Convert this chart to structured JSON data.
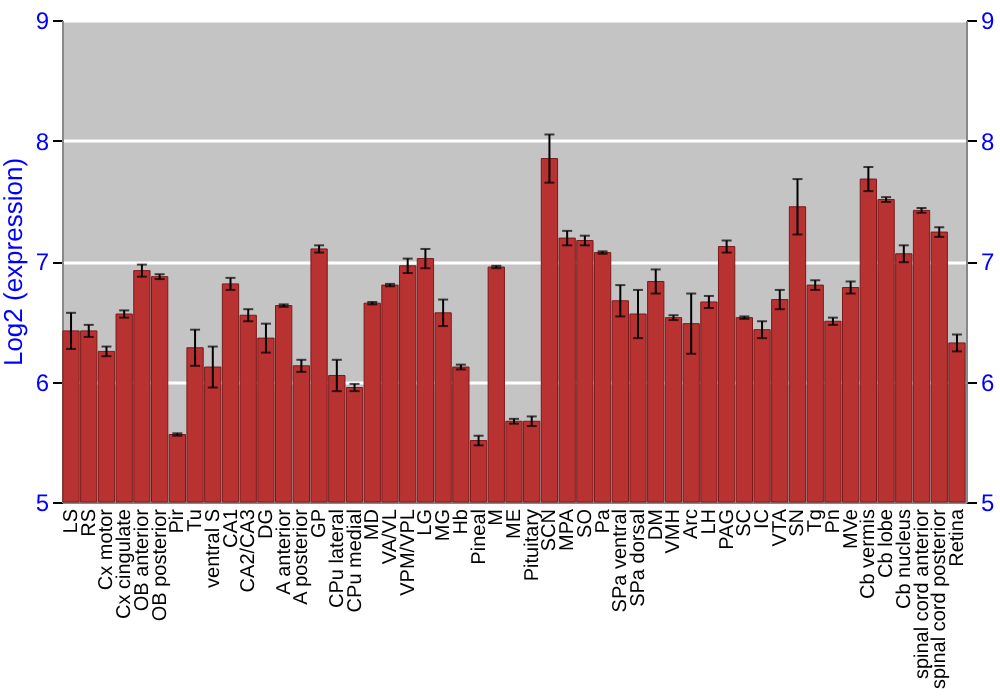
{
  "chart_data": {
    "type": "bar",
    "ylabel": "Log2 (expression)",
    "categories": [
      "LS",
      "RS",
      "Cx motor",
      "Cx cingulate",
      "OB anterior",
      "OB posterior",
      "Pir",
      "Tu",
      "ventral S",
      "CA1",
      "CA2/CA3",
      "DG",
      "A anterior",
      "A posterior",
      "GP",
      "CPu lateral",
      "CPu medial",
      "MD",
      "VA/VL",
      "VPM/VPL",
      "LG",
      "MG",
      "Hb",
      "Pineal",
      "M",
      "ME",
      "Pituitary",
      "SCN",
      "MPA",
      "SO",
      "Pa",
      "SPa ventral",
      "SPa dorsal",
      "DM",
      "VMH",
      "Arc",
      "LH",
      "PAG",
      "SC",
      "IC",
      "VTA",
      "SN",
      "Tg",
      "Pn",
      "MVe",
      "Cb vermis",
      "Cb lobe",
      "Cb nucleus",
      "spinal cord anterior",
      "spinal cord posterior",
      "Retina"
    ],
    "values": [
      6.42,
      6.42,
      6.25,
      6.56,
      6.92,
      6.87,
      5.56,
      6.28,
      6.12,
      6.81,
      6.55,
      6.36,
      6.63,
      6.13,
      7.1,
      6.05,
      5.95,
      6.65,
      6.8,
      6.96,
      7.02,
      6.57,
      6.12,
      5.51,
      6.95,
      5.67,
      5.67,
      7.85,
      7.19,
      7.17,
      7.07,
      6.67,
      6.56,
      6.83,
      6.53,
      6.48,
      6.66,
      7.12,
      6.53,
      6.43,
      6.68,
      7.45,
      6.8,
      6.5,
      6.78,
      7.68,
      7.51,
      7.06,
      7.42,
      7.24,
      6.32
    ],
    "errors": [
      0.15,
      0.05,
      0.04,
      0.03,
      0.05,
      0.02,
      0.01,
      0.15,
      0.17,
      0.05,
      0.05,
      0.12,
      0.01,
      0.05,
      0.03,
      0.13,
      0.03,
      0.01,
      0.01,
      0.06,
      0.08,
      0.11,
      0.02,
      0.04,
      0.01,
      0.02,
      0.04,
      0.2,
      0.06,
      0.04,
      0.01,
      0.13,
      0.2,
      0.1,
      0.02,
      0.25,
      0.05,
      0.05,
      0.01,
      0.07,
      0.08,
      0.23,
      0.04,
      0.03,
      0.05,
      0.1,
      0.02,
      0.07,
      0.02,
      0.04,
      0.07
    ],
    "color": "#b83232",
    "ylim": [
      5,
      9
    ],
    "yticks": [
      5,
      6,
      7,
      8,
      9
    ],
    "y2lim": [
      5,
      9
    ],
    "y2ticks": [
      5,
      6,
      7,
      8,
      9
    ],
    "grid": "y"
  }
}
